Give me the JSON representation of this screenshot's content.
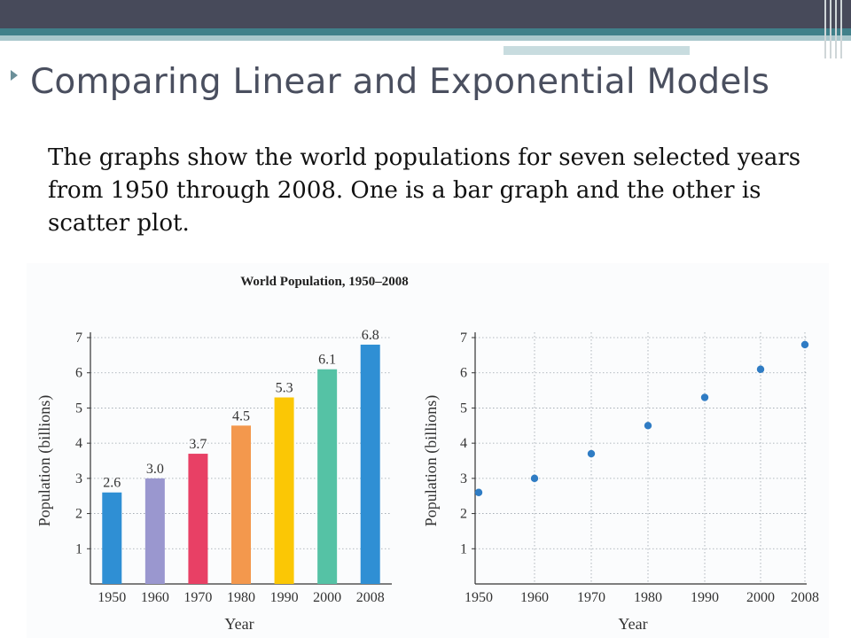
{
  "slide": {
    "title": "Comparing Linear and Exponential Models",
    "body": "The graphs show the world populations for seven selected years from 1950 through 2008.  One is a bar graph and the other is scatter plot."
  },
  "colors": {
    "header_dark": "#474a5a",
    "header_teal": "#40808a",
    "title": "#4a4f5f",
    "bar_colors": [
      "#2f8fd4",
      "#9a97cf",
      "#e84065",
      "#f3984d",
      "#fbc705",
      "#55c2a5",
      "#2f8fd4"
    ],
    "point_color": "#2f7cc4"
  },
  "chart_data": [
    {
      "type": "bar",
      "title": "World Population, 1950–2008",
      "categories": [
        "1950",
        "1960",
        "1970",
        "1980",
        "1990",
        "2000",
        "2008"
      ],
      "values": [
        2.6,
        3.0,
        3.7,
        4.5,
        5.3,
        6.1,
        6.8
      ],
      "data_labels": [
        "2.6",
        "3.0",
        "3.7",
        "4.5",
        "5.3",
        "6.1",
        "6.8"
      ],
      "xlabel": "Year",
      "ylabel": "Population (billions)",
      "ylim": [
        0,
        7
      ],
      "yticks": [
        1,
        2,
        3,
        4,
        5,
        6,
        7
      ],
      "grid": true
    },
    {
      "type": "scatter",
      "x": [
        1950,
        1960,
        1970,
        1980,
        1990,
        2000,
        2008
      ],
      "y": [
        2.6,
        3.0,
        3.7,
        4.5,
        5.3,
        6.1,
        6.8
      ],
      "xtick_labels": [
        "1950",
        "1960",
        "1970",
        "1980",
        "1990",
        "2000",
        "2008"
      ],
      "xlabel": "Year",
      "ylabel": "Population (billions)",
      "ylim": [
        0,
        7
      ],
      "yticks": [
        1,
        2,
        3,
        4,
        5,
        6,
        7
      ],
      "grid": true
    }
  ]
}
